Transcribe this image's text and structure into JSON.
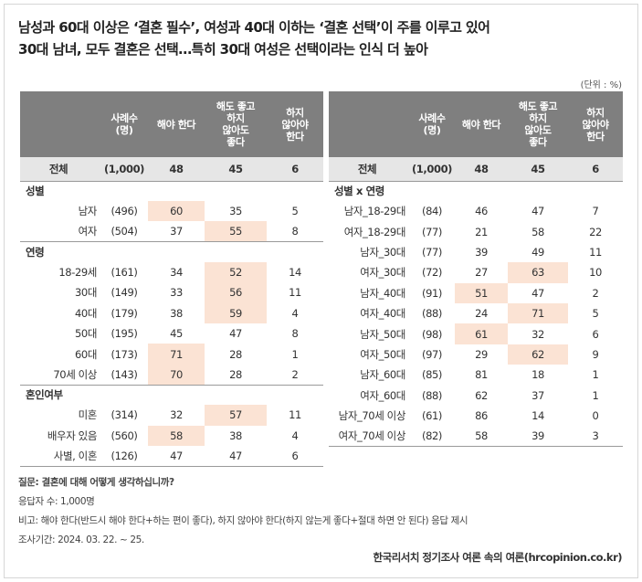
{
  "headline": [
    "남성과 60대 이상은 ‘결혼 필수’, 여성과 40대 이하는 ‘결혼 선택’이 주를 이루고 있어",
    "30대 남녀, 모두 결혼은 선택…특히 30대 여성은 선택이라는 인식 더 높아"
  ],
  "unit": "(단위 : %)",
  "headers": {
    "sample": [
      "사례수",
      "(명)"
    ],
    "must": [
      "해야 한다"
    ],
    "either": [
      "해도 좋고",
      "하지",
      "않아도",
      "좋다"
    ],
    "mustnot": [
      "하지",
      "않아야",
      "한다"
    ]
  },
  "left_table": {
    "total": {
      "label": "전체",
      "n": "(1,000)",
      "v": [
        "48",
        "45",
        "6"
      ]
    },
    "groups": [
      {
        "title": "성별",
        "rows": [
          {
            "label": "남자",
            "n": "(496)",
            "v": [
              "60",
              "35",
              "5"
            ],
            "hl": [
              0
            ]
          },
          {
            "label": "여자",
            "n": "(504)",
            "v": [
              "37",
              "55",
              "8"
            ],
            "hl": [
              1
            ]
          }
        ]
      },
      {
        "title": "연령",
        "rows": [
          {
            "label": "18-29세",
            "n": "(161)",
            "v": [
              "34",
              "52",
              "14"
            ],
            "hl": [
              1
            ]
          },
          {
            "label": "30대",
            "n": "(149)",
            "v": [
              "33",
              "56",
              "11"
            ],
            "hl": [
              1
            ]
          },
          {
            "label": "40대",
            "n": "(179)",
            "v": [
              "38",
              "59",
              "4"
            ],
            "hl": [
              1
            ]
          },
          {
            "label": "50대",
            "n": "(195)",
            "v": [
              "45",
              "47",
              "8"
            ],
            "hl": []
          },
          {
            "label": "60대",
            "n": "(173)",
            "v": [
              "71",
              "28",
              "1"
            ],
            "hl": [
              0
            ]
          },
          {
            "label": "70세 이상",
            "n": "(143)",
            "v": [
              "70",
              "28",
              "2"
            ],
            "hl": [
              0
            ]
          }
        ]
      },
      {
        "title": "혼인여부",
        "rows": [
          {
            "label": "미혼",
            "n": "(314)",
            "v": [
              "32",
              "57",
              "11"
            ],
            "hl": [
              1
            ]
          },
          {
            "label": "배우자 있음",
            "n": "(560)",
            "v": [
              "58",
              "38",
              "4"
            ],
            "hl": [
              0
            ]
          },
          {
            "label": "사별, 이혼",
            "n": "(126)",
            "v": [
              "47",
              "47",
              "6"
            ],
            "hl": []
          }
        ]
      }
    ]
  },
  "right_table": {
    "total": {
      "label": "전체",
      "n": "(1,000)",
      "v": [
        "48",
        "45",
        "6"
      ]
    },
    "group_title": "성별 x 연령",
    "rows": [
      {
        "label": "남자_18-29대",
        "n": "(84)",
        "v": [
          "46",
          "47",
          "7"
        ],
        "hl": []
      },
      {
        "label": "여자_18-29대",
        "n": "(77)",
        "v": [
          "21",
          "58",
          "22"
        ],
        "hl": []
      },
      {
        "label": "남자_30대",
        "n": "(77)",
        "v": [
          "39",
          "49",
          "11"
        ],
        "hl": []
      },
      {
        "label": "여자_30대",
        "n": "(72)",
        "v": [
          "27",
          "63",
          "10"
        ],
        "hl": [
          1
        ]
      },
      {
        "label": "남자_40대",
        "n": "(91)",
        "v": [
          "51",
          "47",
          "2"
        ],
        "hl": [
          0
        ]
      },
      {
        "label": "여자_40대",
        "n": "(88)",
        "v": [
          "24",
          "71",
          "5"
        ],
        "hl": [
          1
        ]
      },
      {
        "label": "남자_50대",
        "n": "(98)",
        "v": [
          "61",
          "32",
          "6"
        ],
        "hl": [
          0
        ]
      },
      {
        "label": "여자_50대",
        "n": "(97)",
        "v": [
          "29",
          "62",
          "9"
        ],
        "hl": [
          1
        ]
      },
      {
        "label": "남자_60대",
        "n": "(85)",
        "v": [
          "81",
          "18",
          "1"
        ],
        "hl": []
      },
      {
        "label": "여자_60대",
        "n": "(88)",
        "v": [
          "62",
          "37",
          "1"
        ],
        "hl": []
      },
      {
        "label": "남자_70세 이상",
        "n": "(61)",
        "v": [
          "86",
          "14",
          "0"
        ],
        "hl": []
      },
      {
        "label": "여자_70세 이상",
        "n": "(82)",
        "v": [
          "58",
          "39",
          "3"
        ],
        "hl": []
      }
    ]
  },
  "notes": {
    "question": "질문: 결혼에 대해 어떻게 생각하십니까?",
    "respondents": "응답자 수: 1,000명",
    "remark": "비고: 해야 한다(반드시 해야 한다+하는 편이 좋다), 하지 않아야 한다(하지 않는게 좋다+절대 하면 안 된다) 응답 제시",
    "period": "조사기간: 2024. 03. 22. ~ 25."
  },
  "source": "한국리서치 정기조사 여론 속의 여론(hrcopinion.co.kr)",
  "colors": {
    "header_bg": "#7f7f7f",
    "total_bg": "#e6e6e6",
    "highlight": "#fbe3d4"
  }
}
